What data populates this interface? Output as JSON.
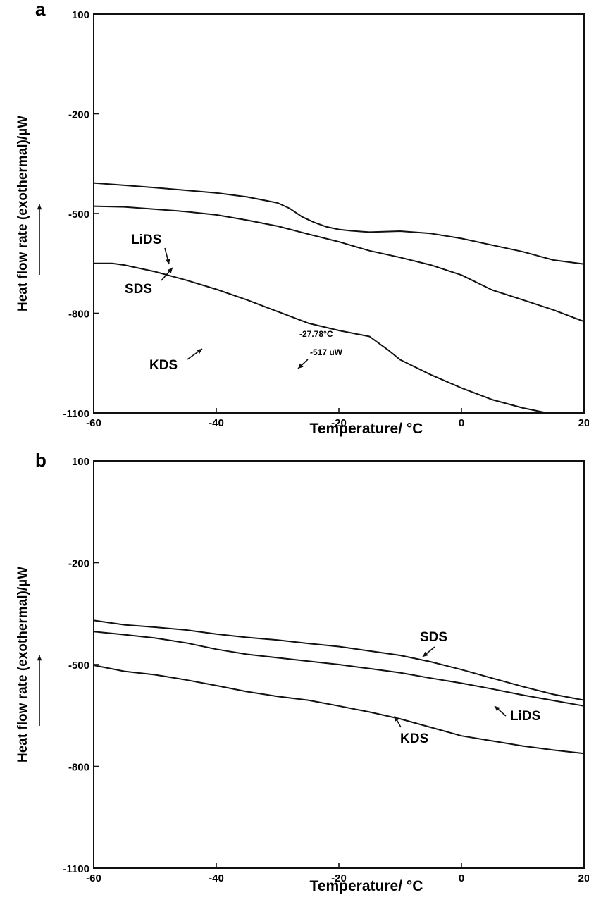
{
  "chart_data": [
    {
      "panel": "a",
      "type": "line",
      "xlabel": "Temperature/  °C",
      "ylabel": "Heat flow rate (exothermal)/µW",
      "xlim": [
        -60,
        20
      ],
      "ylim": [
        -1100,
        100
      ],
      "xticks": [
        -60,
        -40,
        -20,
        0,
        20
      ],
      "yticks": [
        100,
        -200,
        -500,
        -800,
        -1100
      ],
      "grid": false,
      "annotations": [
        "-27.78°C",
        "-517 uW"
      ],
      "series": [
        {
          "name": "LiDS",
          "x": [
            -60,
            -55,
            -50,
            -45,
            -40,
            -35,
            -30,
            -28,
            -26,
            -24,
            -22,
            -20,
            -18,
            -15,
            -10,
            -5,
            0,
            5,
            10,
            15,
            20
          ],
          "y": [
            -408,
            -415,
            -422,
            -430,
            -438,
            -450,
            -468,
            -485,
            -510,
            -527,
            -540,
            -548,
            -552,
            -556,
            -553,
            -560,
            -575,
            -595,
            -615,
            -640,
            -652
          ]
        },
        {
          "name": "SDS",
          "x": [
            -60,
            -55,
            -50,
            -45,
            -40,
            -35,
            -30,
            -25,
            -20,
            -15,
            -10,
            -5,
            0,
            5,
            10,
            15,
            20
          ],
          "y": [
            -478,
            -480,
            -487,
            -494,
            -504,
            -520,
            -538,
            -562,
            -585,
            -612,
            -632,
            -655,
            -685,
            -730,
            -760,
            -790,
            -825
          ]
        },
        {
          "name": "KDS",
          "x": [
            -60,
            -57,
            -55,
            -50,
            -45,
            -40,
            -35,
            -30,
            -25,
            -20,
            -15,
            -12,
            -10,
            -5,
            0,
            5,
            10,
            14
          ],
          "y": [
            -650,
            -650,
            -655,
            -675,
            -700,
            -728,
            -760,
            -795,
            -830,
            -852,
            -870,
            -910,
            -940,
            -985,
            -1025,
            -1060,
            -1085,
            -1100
          ]
        }
      ]
    },
    {
      "panel": "b",
      "type": "line",
      "xlabel": "Temperature/  °C",
      "ylabel": "Heat flow rate (exothermal)/µW",
      "xlim": [
        -60,
        20
      ],
      "ylim": [
        -1100,
        100
      ],
      "xticks": [
        -60,
        -40,
        -20,
        0,
        20
      ],
      "yticks": [
        100,
        -200,
        -500,
        -800,
        -1100
      ],
      "grid": false,
      "series": [
        {
          "name": "SDS",
          "x": [
            -60,
            -55,
            -50,
            -45,
            -40,
            -35,
            -30,
            -25,
            -20,
            -15,
            -10,
            -5,
            0,
            5,
            10,
            15,
            20
          ],
          "y": [
            -370,
            -383,
            -390,
            -398,
            -410,
            -420,
            -428,
            -438,
            -447,
            -460,
            -473,
            -492,
            -515,
            -540,
            -565,
            -588,
            -605
          ]
        },
        {
          "name": "LiDS",
          "x": [
            -60,
            -55,
            -50,
            -45,
            -40,
            -35,
            -30,
            -25,
            -20,
            -15,
            -10,
            -5,
            0,
            5,
            10,
            15,
            20
          ],
          "y": [
            -403,
            -412,
            -422,
            -436,
            -455,
            -470,
            -480,
            -490,
            -500,
            -512,
            -524,
            -540,
            -555,
            -572,
            -590,
            -606,
            -622
          ]
        },
        {
          "name": "KDS",
          "x": [
            -60,
            -55,
            -50,
            -45,
            -40,
            -35,
            -30,
            -25,
            -20,
            -15,
            -10,
            -5,
            0,
            5,
            10,
            15,
            20
          ],
          "y": [
            -502,
            -520,
            -530,
            -545,
            -562,
            -580,
            -594,
            -605,
            -622,
            -640,
            -660,
            -685,
            -710,
            -725,
            -740,
            -752,
            -762
          ]
        }
      ]
    }
  ]
}
